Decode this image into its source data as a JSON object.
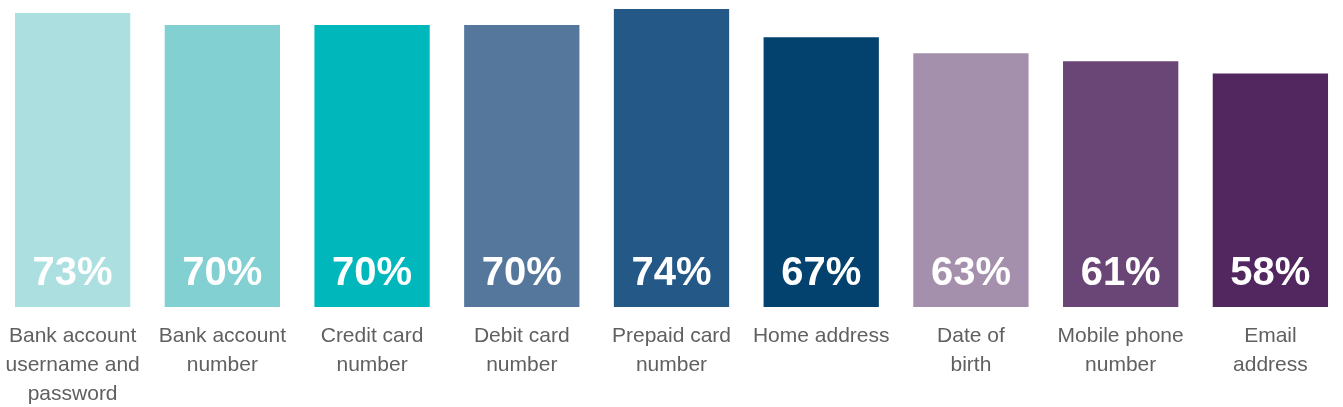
{
  "chart_data": {
    "type": "bar",
    "categories": [
      "Bank account username and password",
      "Bank account number",
      "Credit card number",
      "Debit card number",
      "Prepaid card number",
      "Home address",
      "Date of birth",
      "Mobile phone number",
      "Email address"
    ],
    "values": [
      73,
      70,
      70,
      70,
      74,
      67,
      63,
      61,
      58
    ],
    "colors": [
      "#acdfe0",
      "#82d0d2",
      "#00b8bb",
      "#55779b",
      "#245987",
      "#03426e",
      "#a490ac",
      "#6a4676",
      "#52265f"
    ],
    "value_labels": [
      "73%",
      "70%",
      "70%",
      "70%",
      "74%",
      "67%",
      "63%",
      "61%",
      "58%"
    ]
  }
}
